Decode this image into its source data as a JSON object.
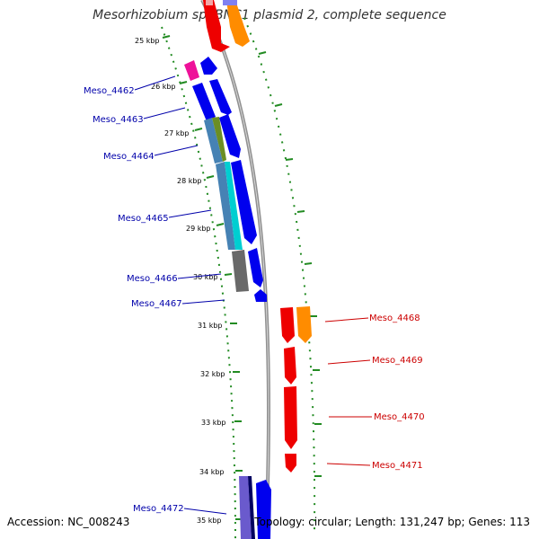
{
  "title": "Mesorhizobium sp. BNC1 plasmid 2, complete sequence",
  "accession": "Accession: NC_008243",
  "topology": "Topology: circular; Length: 131,247 bp; Genes: 113",
  "kbp_labels": [
    "25 kbp",
    "26 kbp",
    "27 kbp",
    "28 kbp",
    "29 kbp",
    "30 kbp",
    "31 kbp",
    "32 kbp",
    "33 kbp",
    "34 kbp",
    "35 kbp"
  ],
  "genes_left": [
    "Meso_4462",
    "Meso_4463",
    "Meso_4464",
    "Meso_4465",
    "Meso_4466",
    "Meso_4467",
    "Meso_4472"
  ],
  "genes_right": [
    "Meso_4468",
    "Meso_4469",
    "Meso_4470",
    "Meso_4471"
  ],
  "colors": {
    "forward_gene": "#0000ee",
    "reverse_gene": "#ee0000",
    "left_label": "#0000aa",
    "right_label": "#cc0000",
    "ruler": "#228b22",
    "backbone": "#888888"
  }
}
